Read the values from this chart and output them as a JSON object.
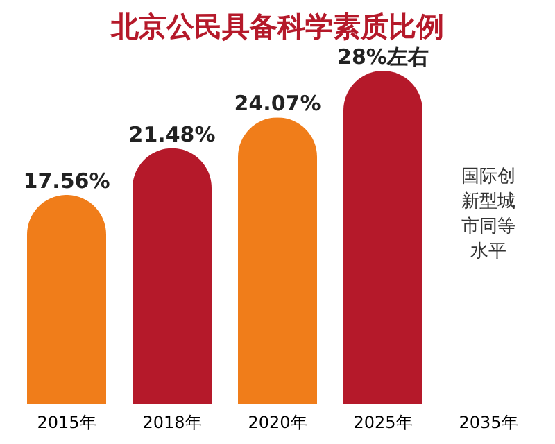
{
  "chart_data": {
    "type": "bar",
    "title": "北京公民具备科学素质比例",
    "categories": [
      "2015年",
      "2018年",
      "2020年",
      "2025年",
      "2035年"
    ],
    "values": [
      17.56,
      21.48,
      24.07,
      28,
      null
    ],
    "colors": [
      "#f07d1a",
      "#b5192a",
      "#f07d1a",
      "#b5192a",
      "#b5192a"
    ],
    "value_labels": [
      "17.56%",
      "21.48%",
      "24.07%",
      "28%左右",
      null
    ],
    "annotations": [
      "国际创新型城市同等水平"
    ],
    "tick_labels": "x",
    "grid": false
  }
}
